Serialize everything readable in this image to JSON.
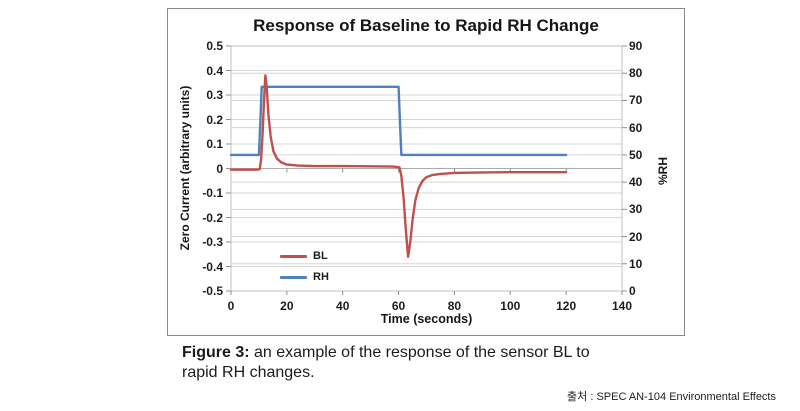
{
  "chart_data": {
    "type": "line",
    "title": "Response of Baseline to Rapid RH Change",
    "xlabel": "Time (seconds)",
    "ylabel_left": "Zero Current (arbitrary units)",
    "ylabel_right": "%RH",
    "xlim": [
      0,
      140
    ],
    "ylim_left": [
      -0.5,
      0.5
    ],
    "ylim_right": [
      0,
      90
    ],
    "x_ticks": [
      "0",
      "20",
      "40",
      "60",
      "80",
      "100",
      "120",
      "140"
    ],
    "y_ticks_left": [
      "0.5",
      "0.4",
      "0.3",
      "0.2",
      "0.1",
      "0",
      "-0.1",
      "-0.2",
      "-0.3",
      "-0.4",
      "-0.5"
    ],
    "y_ticks_right": [
      "90",
      "80",
      "70",
      "60",
      "50",
      "40",
      "30",
      "20",
      "10",
      "0"
    ],
    "grid": true,
    "legend_position": "inside-lower-left",
    "colors": {
      "gridline": "#d6d6d6",
      "plot_border": "#c0c0c0",
      "zero_axis": "#ababab",
      "tick_mark": "#8f8f8f"
    },
    "series": [
      {
        "name": "BL",
        "axis": "left",
        "color": "#C0504D",
        "points": [
          [
            0,
            -0.005
          ],
          [
            9,
            -0.005
          ],
          [
            10.3,
            -0.003
          ],
          [
            10.8,
            0.04
          ],
          [
            11.3,
            0.14
          ],
          [
            11.8,
            0.27
          ],
          [
            12.3,
            0.38
          ],
          [
            12.8,
            0.33
          ],
          [
            13.4,
            0.22
          ],
          [
            14.2,
            0.13
          ],
          [
            15.2,
            0.07
          ],
          [
            16.5,
            0.04
          ],
          [
            18,
            0.025
          ],
          [
            20,
            0.016
          ],
          [
            24,
            0.012
          ],
          [
            30,
            0.01
          ],
          [
            40,
            0.01
          ],
          [
            50,
            0.009
          ],
          [
            58,
            0.008
          ],
          [
            60.3,
            0.005
          ],
          [
            61,
            -0.03
          ],
          [
            61.8,
            -0.12
          ],
          [
            62.6,
            -0.25
          ],
          [
            63.4,
            -0.36
          ],
          [
            64.2,
            -0.3
          ],
          [
            65,
            -0.21
          ],
          [
            66,
            -0.13
          ],
          [
            67.2,
            -0.08
          ],
          [
            68.6,
            -0.05
          ],
          [
            70,
            -0.035
          ],
          [
            72,
            -0.027
          ],
          [
            75,
            -0.022
          ],
          [
            80,
            -0.018
          ],
          [
            90,
            -0.016
          ],
          [
            100,
            -0.015
          ],
          [
            110,
            -0.015
          ],
          [
            120,
            -0.015
          ]
        ]
      },
      {
        "name": "RH",
        "axis": "right",
        "color": "#4F81BD",
        "points": [
          [
            0,
            50
          ],
          [
            10,
            50
          ],
          [
            10.5,
            62
          ],
          [
            11,
            75
          ],
          [
            60,
            75
          ],
          [
            60.5,
            62
          ],
          [
            61,
            50
          ],
          [
            120,
            50
          ]
        ]
      }
    ]
  },
  "caption": {
    "prefix": "Figure 3:",
    "line1": "an example of the response of the sensor BL to",
    "line2": "rapid RH changes."
  },
  "source": "출처 : SPEC AN-104 Environmental Effects"
}
